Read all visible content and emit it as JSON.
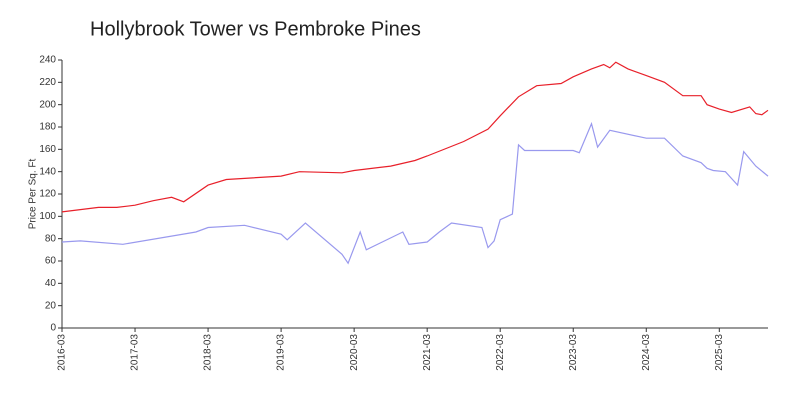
{
  "chart_data": {
    "type": "line",
    "title": "Hollybrook Tower vs Pembroke Pines",
    "ylabel": "Price Per Sq. Ft",
    "xlim": [
      "2016-03",
      "2025-11"
    ],
    "xticks": [
      "2016-03",
      "2017-03",
      "2018-03",
      "2019-03",
      "2020-03",
      "2021-03",
      "2022-03",
      "2023-03",
      "2024-03",
      "2025-03"
    ],
    "ylim": [
      0,
      240
    ],
    "yticks": [
      0,
      20,
      40,
      60,
      80,
      100,
      120,
      140,
      160,
      180,
      200,
      220,
      240
    ],
    "series": [
      {
        "color": "#e8202a",
        "x": [
          "2016-03",
          "2016-06",
          "2016-09",
          "2016-12",
          "2017-03",
          "2017-06",
          "2017-09",
          "2017-11",
          "2018-03",
          "2018-06",
          "2019-03",
          "2019-06",
          "2020-01",
          "2020-03",
          "2020-09",
          "2021-01",
          "2021-03",
          "2021-09",
          "2022-01",
          "2022-03",
          "2022-06",
          "2022-09",
          "2023-01",
          "2023-03",
          "2023-06",
          "2023-08",
          "2023-09",
          "2023-10",
          "2023-12",
          "2024-03",
          "2024-06",
          "2024-09",
          "2024-12",
          "2025-01",
          "2025-03",
          "2025-05",
          "2025-08",
          "2025-09",
          "2025-10",
          "2025-11"
        ],
        "values": [
          104,
          106,
          108,
          108,
          110,
          114,
          117,
          113,
          128,
          133,
          136,
          140,
          139,
          141,
          145,
          150,
          154,
          167,
          178,
          190,
          207,
          217,
          219,
          225,
          232,
          236,
          233,
          238,
          232,
          226,
          220,
          208,
          208,
          200,
          196,
          193,
          198,
          192,
          191,
          195
        ]
      },
      {
        "color": "#9999ee",
        "x": [
          "2016-03",
          "2016-06",
          "2017-01",
          "2018-01",
          "2018-03",
          "2018-09",
          "2019-03",
          "2019-04",
          "2019-07",
          "2020-01",
          "2020-02",
          "2020-04",
          "2020-05",
          "2020-11",
          "2020-12",
          "2021-03",
          "2021-05",
          "2021-07",
          "2021-12",
          "2022-01",
          "2022-02",
          "2022-03",
          "2022-05",
          "2022-06",
          "2022-07",
          "2023-03",
          "2023-04",
          "2023-06",
          "2023-07",
          "2023-09",
          "2024-03",
          "2024-06",
          "2024-09",
          "2024-12",
          "2025-01",
          "2025-02",
          "2025-04",
          "2025-06",
          "2025-07",
          "2025-09",
          "2025-11"
        ],
        "values": [
          77,
          78,
          75,
          86,
          90,
          92,
          84,
          79,
          94,
          66,
          58,
          86,
          70,
          86,
          75,
          77,
          86,
          94,
          90,
          72,
          78,
          97,
          102,
          164,
          159,
          159,
          157,
          183,
          162,
          177,
          170,
          170,
          154,
          148,
          143,
          141,
          140,
          128,
          158,
          145,
          136
        ]
      }
    ]
  }
}
